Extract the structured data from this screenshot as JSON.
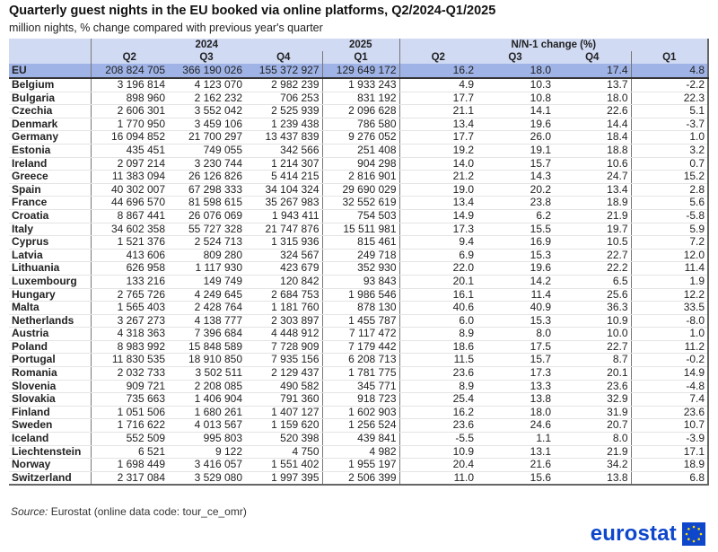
{
  "title": "Quarterly guest nights in the EU booked via online platforms, Q2/2024-Q1/2025",
  "subtitle": "million nights, % change compared with previous year's quarter",
  "headers": {
    "y2024": "2024",
    "y2025": "2025",
    "change": "N/N-1 change (%)",
    "q2": "Q2",
    "q3": "Q3",
    "q4": "Q4",
    "q1": "Q1"
  },
  "rows": [
    [
      "EU",
      "208 824 705",
      "366 190 026",
      "155 372 927",
      "129 649 172",
      "16.2",
      "18.0",
      "17.4",
      "4.8"
    ],
    [
      "Belgium",
      "3 196 814",
      "4 123 070",
      "2 982 239",
      "1 933 243",
      "4.9",
      "10.3",
      "13.7",
      "-2.2"
    ],
    [
      "Bulgaria",
      "898 960",
      "2 162 232",
      "706 253",
      "831 192",
      "17.7",
      "10.8",
      "18.0",
      "22.3"
    ],
    [
      "Czechia",
      "2 606 301",
      "3 552 042",
      "2 525 939",
      "2 096 628",
      "21.1",
      "14.1",
      "22.6",
      "5.1"
    ],
    [
      "Denmark",
      "1 770 950",
      "3 459 106",
      "1 239 438",
      "786 580",
      "13.4",
      "19.6",
      "14.4",
      "-3.7"
    ],
    [
      "Germany",
      "16 094 852",
      "21 700 297",
      "13 437 839",
      "9 276 052",
      "17.7",
      "26.0",
      "18.4",
      "1.0"
    ],
    [
      "Estonia",
      "435 451",
      "749 055",
      "342 566",
      "251 408",
      "19.2",
      "19.1",
      "18.8",
      "3.2"
    ],
    [
      "Ireland",
      "2 097 214",
      "3 230 744",
      "1 214 307",
      "904 298",
      "14.0",
      "15.7",
      "10.6",
      "0.7"
    ],
    [
      "Greece",
      "11 383 094",
      "26 126 826",
      "5 414 215",
      "2 816 901",
      "21.2",
      "14.3",
      "24.7",
      "15.2"
    ],
    [
      "Spain",
      "40 302 007",
      "67 298 333",
      "34 104 324",
      "29 690 029",
      "19.0",
      "20.2",
      "13.4",
      "2.8"
    ],
    [
      "France",
      "44 696 570",
      "81 598 615",
      "35 267 983",
      "32 552 619",
      "13.4",
      "23.8",
      "18.9",
      "5.6"
    ],
    [
      "Croatia",
      "8 867 441",
      "26 076 069",
      "1 943 411",
      "754 503",
      "14.9",
      "6.2",
      "21.9",
      "-5.8"
    ],
    [
      "Italy",
      "34 602 358",
      "55 727 328",
      "21 747 876",
      "15 511 981",
      "17.3",
      "15.5",
      "19.7",
      "5.9"
    ],
    [
      "Cyprus",
      "1 521 376",
      "2 524 713",
      "1 315 936",
      "815 461",
      "9.4",
      "16.9",
      "10.5",
      "7.2"
    ],
    [
      "Latvia",
      "413 606",
      "809 280",
      "324 567",
      "249 718",
      "6.9",
      "15.3",
      "22.7",
      "12.0"
    ],
    [
      "Lithuania",
      "626 958",
      "1 117 930",
      "423 679",
      "352 930",
      "22.0",
      "19.6",
      "22.2",
      "11.4"
    ],
    [
      "Luxembourg",
      "133 216",
      "149 749",
      "120 842",
      "93 843",
      "20.1",
      "14.2",
      "6.5",
      "1.9"
    ],
    [
      "Hungary",
      "2 765 726",
      "4 249 645",
      "2 684 753",
      "1 986 546",
      "16.1",
      "11.4",
      "25.6",
      "12.2"
    ],
    [
      "Malta",
      "1 565 403",
      "2 428 764",
      "1 181 760",
      "878 130",
      "40.6",
      "40.9",
      "36.3",
      "33.5"
    ],
    [
      "Netherlands",
      "3 267 273",
      "4 138 777",
      "2 303 897",
      "1 455 787",
      "6.0",
      "15.3",
      "10.9",
      "-8.0"
    ],
    [
      "Austria",
      "4 318 363",
      "7 396 684",
      "4 448 912",
      "7 117 472",
      "8.9",
      "8.0",
      "10.0",
      "1.0"
    ],
    [
      "Poland",
      "8 983 992",
      "15 848 589",
      "7 728 909",
      "7 179 442",
      "18.6",
      "17.5",
      "22.7",
      "11.2"
    ],
    [
      "Portugal",
      "11 830 535",
      "18 910 850",
      "7 935 156",
      "6 208 713",
      "11.5",
      "15.7",
      "8.7",
      "-0.2"
    ],
    [
      "Romania",
      "2 032 733",
      "3 502 511",
      "2 129 437",
      "1 781 775",
      "23.6",
      "17.3",
      "20.1",
      "14.9"
    ],
    [
      "Slovenia",
      "909 721",
      "2 208 085",
      "490 582",
      "345 771",
      "8.9",
      "13.3",
      "23.6",
      "-4.8"
    ],
    [
      "Slovakia",
      "735 663",
      "1 406 904",
      "791 360",
      "918 723",
      "25.4",
      "13.8",
      "32.9",
      "7.4"
    ],
    [
      "Finland",
      "1 051 506",
      "1 680 261",
      "1 407 127",
      "1 602 903",
      "16.2",
      "18.0",
      "31.9",
      "23.6"
    ],
    [
      "Sweden",
      "1 716 622",
      "4 013 567",
      "1 159 620",
      "1 256 524",
      "23.6",
      "24.6",
      "20.7",
      "10.7"
    ],
    [
      "Iceland",
      "552 509",
      "995 803",
      "520 398",
      "439 841",
      "-5.5",
      "1.1",
      "8.0",
      "-3.9"
    ],
    [
      "Liechtenstein",
      "6 521",
      "9 122",
      "4 750",
      "4 982",
      "10.9",
      "13.1",
      "21.9",
      "17.1"
    ],
    [
      "Norway",
      "1 698 449",
      "3 416 057",
      "1 551 402",
      "1 955 197",
      "20.4",
      "21.6",
      "34.2",
      "18.9"
    ],
    [
      "Switzerland",
      "2 317 084",
      "3 529 080",
      "1 997 395",
      "2 506 399",
      "11.0",
      "15.6",
      "13.8",
      "6.8"
    ]
  ],
  "source": {
    "label": "Source:",
    "text": "Eurostat (online data code: tour_ce_omr)"
  },
  "logo": "eurostat"
}
